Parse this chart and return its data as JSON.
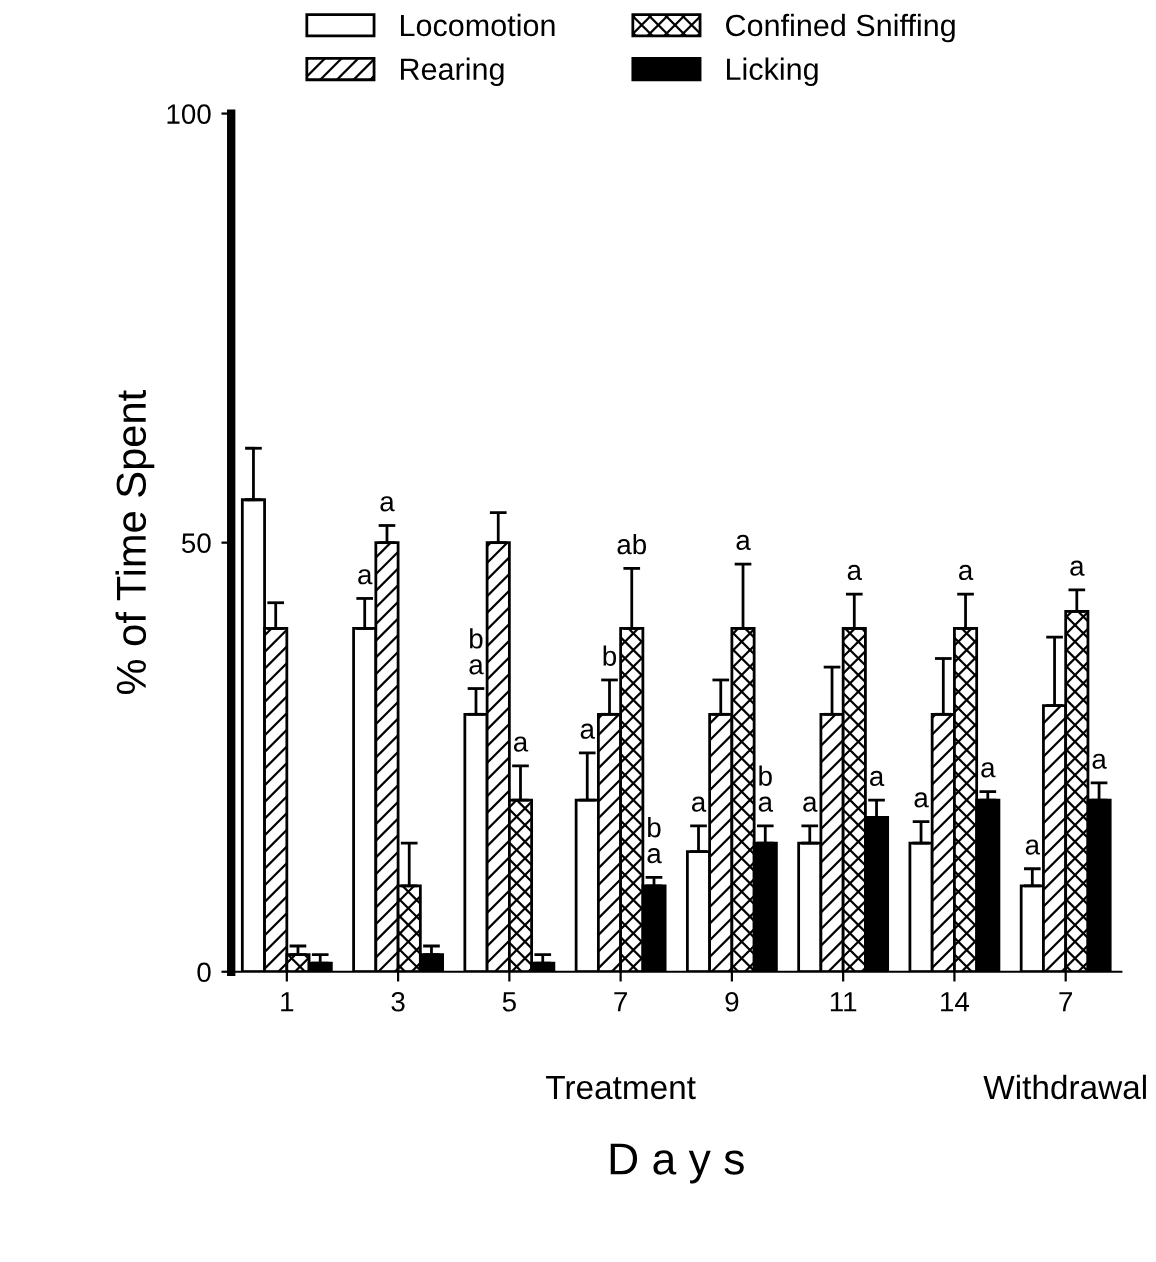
{
  "chart_data": {
    "type": "bar",
    "ylabel": "% of Time Spent",
    "xlabel": "D a y s",
    "categories": [
      "1",
      "3",
      "5",
      "7",
      "9",
      "11",
      "14",
      "7"
    ],
    "ylim": [
      0,
      100
    ],
    "yticks": [
      0,
      50,
      100
    ],
    "legend": "top",
    "grid": false,
    "annotations": [
      "Treatment",
      "Withdrawal"
    ],
    "series": [
      {
        "name": "Locomotion",
        "color": "#ffffff",
        "values": [
          55,
          40,
          30,
          20,
          14,
          15,
          15,
          10
        ],
        "errors": [
          [
            55,
            61
          ],
          [
            40,
            43.5
          ],
          [
            30,
            33
          ],
          [
            20,
            25.5
          ],
          [
            14,
            17
          ],
          [
            15,
            17
          ],
          [
            15,
            17.5
          ],
          [
            10,
            12
          ]
        ],
        "value_labels": [
          null,
          "a",
          "b\na",
          "a",
          "a",
          "a",
          "a",
          "a"
        ]
      },
      {
        "name": "Rearing",
        "color": "#000000",
        "values": [
          40,
          50,
          50,
          30,
          30,
          30,
          30,
          31
        ],
        "errors": [
          [
            40,
            43
          ],
          [
            50,
            52
          ],
          [
            50,
            53.5
          ],
          [
            30,
            34
          ],
          [
            30,
            34
          ],
          [
            30,
            35.5
          ],
          [
            30,
            36.5
          ],
          [
            31,
            39
          ]
        ],
        "value_labels": [
          null,
          "a",
          null,
          "b",
          null,
          null,
          null,
          null
        ]
      },
      {
        "name": "Confined Sniffing",
        "color": "#000000",
        "values": [
          2,
          10,
          20,
          40,
          40,
          40,
          40,
          42
        ],
        "errors": [
          [
            2,
            3
          ],
          [
            10,
            15
          ],
          [
            20,
            24
          ],
          [
            40,
            47
          ],
          [
            40,
            47.5
          ],
          [
            40,
            44
          ],
          [
            40,
            44
          ],
          [
            42,
            44.5
          ]
        ],
        "value_labels": [
          null,
          null,
          "a",
          "ab",
          "a",
          "a",
          "a",
          "a"
        ]
      },
      {
        "name": "Licking",
        "color": "#000000",
        "values": [
          1,
          2,
          1,
          10,
          15,
          18,
          20,
          20
        ],
        "errors": [
          [
            1,
            2
          ],
          [
            2,
            3
          ],
          [
            1,
            2
          ],
          [
            10,
            11
          ],
          [
            15,
            17
          ],
          [
            18,
            20
          ],
          [
            20,
            21
          ],
          [
            20,
            22
          ]
        ],
        "value_labels": [
          null,
          null,
          null,
          "b\na",
          "b\na",
          "a",
          "a",
          "a"
        ]
      }
    ]
  }
}
